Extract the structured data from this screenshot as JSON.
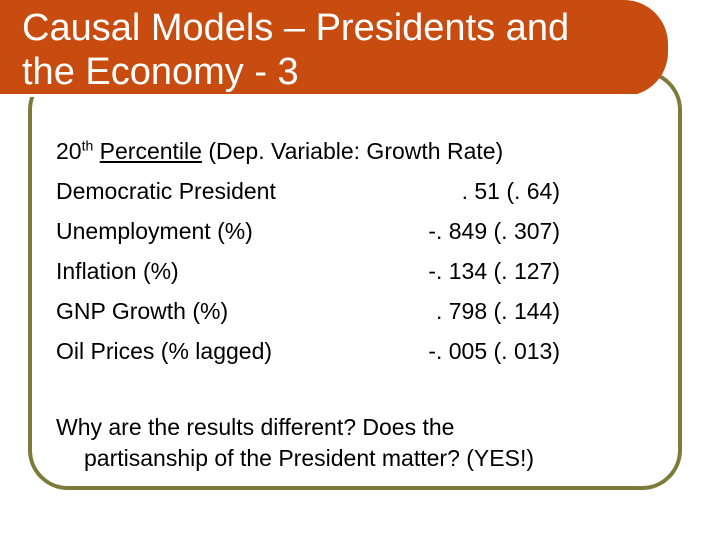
{
  "slide": {
    "title_line1": "Causal Models – Presidents and",
    "title_line2": "the Economy - 3",
    "header": {
      "num": "20",
      "suffix": "th",
      "underlined": "Percentile",
      "rest": " (Dep. Variable: Growth Rate)"
    },
    "rows": [
      {
        "label": "Democratic President",
        "value": ". 51   (. 64)"
      },
      {
        "label": "Unemployment (%)",
        "value": "-. 849 (. 307)"
      },
      {
        "label": "Inflation (%)",
        "value": "-. 134 (. 127)"
      },
      {
        "label": "GNP Growth (%)",
        "value": ". 798 (. 144)"
      },
      {
        "label": "Oil Prices (% lagged)",
        "value": "-. 005 (. 013)"
      }
    ],
    "question_line1": "Why are the results different? Does the",
    "question_line2": "partisanship of the President matter? (YES!)"
  },
  "colors": {
    "title_bar": "#c84c10",
    "frame_border": "#7d7a3a",
    "title_text": "#ffffff",
    "body_text": "#000000"
  }
}
